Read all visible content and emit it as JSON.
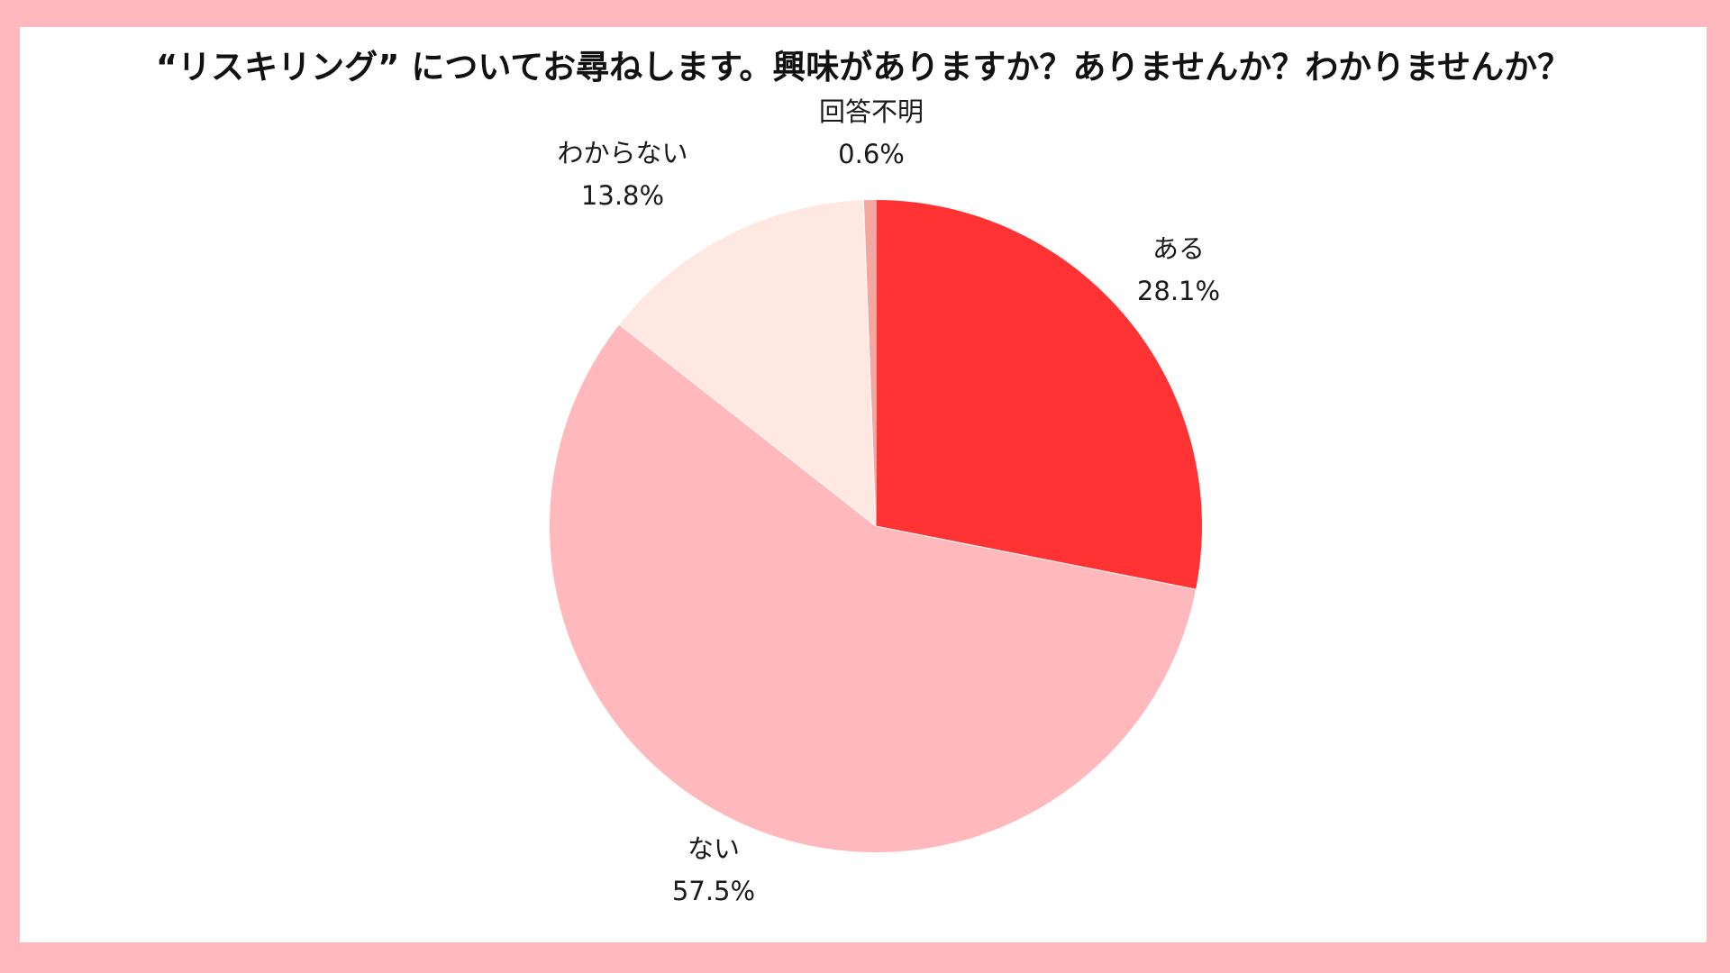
{
  "chart_data": {
    "type": "pie",
    "title": "“リスキリング” についてお尋ねします。興味がありますか？ありませんか？わかりませんか？",
    "start_angle_deg": 0,
    "direction": "clockwise",
    "slices": [
      {
        "label": "ある",
        "value": 28.1,
        "value_label": "28.1%",
        "color": "#ff3333"
      },
      {
        "label": "ない",
        "value": 57.5,
        "value_label": "57.5%",
        "color": "#ffb8bb"
      },
      {
        "label": "わからない",
        "value": 13.8,
        "value_label": "13.8%",
        "color": "#ffe8e1"
      },
      {
        "label": "回答不明",
        "value": 0.6,
        "value_label": "0.6%",
        "color": "#f4a6a0"
      }
    ]
  },
  "colors": {
    "frame_border": "#ffb8bd",
    "background": "#ffffff"
  }
}
